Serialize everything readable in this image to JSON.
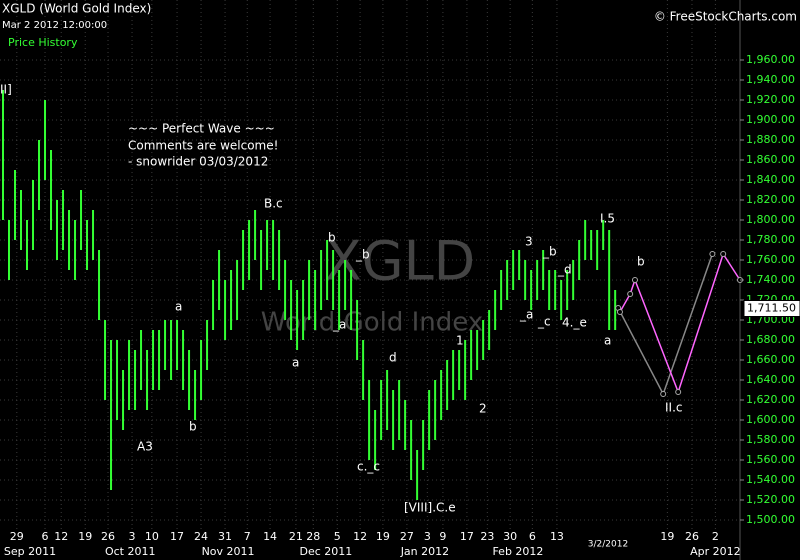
{
  "header": {
    "symbol": "XGLD (World Gold Index)",
    "date": "Mar 2 2012 12:00:00",
    "panel": "Price History",
    "source": "© FreeStockCharts.com"
  },
  "watermark": {
    "symbol": "XGLD",
    "name": "World Gold Index"
  },
  "annotations": [
    "II]",
    "~~~ Perfect Wave ~~~",
    "Comments are welcome!",
    "- snowrider  03/03/2012",
    "B.c",
    "a",
    "A3",
    "b",
    "a",
    "b",
    "_b",
    "_a",
    "d",
    "c._c",
    "[VIII].C.e",
    "1",
    "2",
    "3",
    "_b",
    "_d",
    "_a",
    "_c",
    "4._e",
    "I.5",
    "a",
    "b",
    "II.c"
  ],
  "chart_data": {
    "type": "range-bar",
    "color": "#33ff33",
    "grid": true,
    "xlim": [
      -0.5,
      122.8
    ],
    "ylim": [
      1480,
      2020
    ],
    "low": [
      1800,
      1740,
      1780,
      1770,
      1750,
      1770,
      1810,
      1840,
      1790,
      1760,
      1770,
      1750,
      1740,
      1770,
      1750,
      1760,
      1700,
      1620,
      1530,
      1600,
      1590,
      1610,
      1610,
      1630,
      1610,
      1630,
      1630,
      1650,
      1640,
      1650,
      1630,
      1610,
      1600,
      1620,
      1650,
      1690,
      1710,
      1680,
      1690,
      1700,
      1730,
      1740,
      1760,
      1730,
      1750,
      1740,
      1730,
      1700,
      1680,
      1670,
      1680,
      1700,
      1690,
      1710,
      1720,
      1710,
      1690,
      1710,
      1690,
      1660,
      1620,
      1560,
      1550,
      1580,
      1590,
      1570,
      1580,
      1570,
      1540,
      1520,
      1550,
      1570,
      1580,
      1600,
      1610,
      1620,
      1630,
      1620,
      1640,
      1650,
      1660,
      1670,
      1690,
      1710,
      1720,
      1730,
      1740,
      1720,
      1710,
      1720,
      1730,
      1710,
      1710,
      1700,
      1710,
      1720,
      1740,
      1760,
      1760,
      1750,
      1770,
      1690,
      1690
    ],
    "high": [
      1930,
      1800,
      1850,
      1830,
      1800,
      1840,
      1880,
      1920,
      1870,
      1820,
      1830,
      1810,
      1800,
      1830,
      1800,
      1810,
      1770,
      1700,
      1680,
      1680,
      1650,
      1680,
      1670,
      1690,
      1670,
      1690,
      1690,
      1700,
      1700,
      1700,
      1690,
      1670,
      1650,
      1680,
      1700,
      1740,
      1770,
      1740,
      1750,
      1760,
      1790,
      1800,
      1810,
      1790,
      1800,
      1800,
      1790,
      1760,
      1740,
      1730,
      1740,
      1760,
      1750,
      1770,
      1780,
      1770,
      1750,
      1760,
      1750,
      1720,
      1680,
      1640,
      1610,
      1640,
      1650,
      1630,
      1640,
      1620,
      1600,
      1570,
      1600,
      1630,
      1640,
      1650,
      1660,
      1670,
      1670,
      1680,
      1690,
      1690,
      1700,
      1710,
      1730,
      1750,
      1760,
      1770,
      1770,
      1760,
      1750,
      1760,
      1770,
      1750,
      1750,
      1740,
      1750,
      1760,
      1780,
      1800,
      1790,
      1790,
      1800,
      1790,
      1730
    ],
    "projections": [
      {
        "color": "#888888",
        "x": [
          102.5,
          110,
          118.2
        ],
        "values": [
          1712,
          1626,
          1766
        ]
      },
      {
        "color": "#ff66ff",
        "x": [
          102.8,
          104.5,
          105.3,
          112.5,
          120,
          122.8
        ],
        "values": [
          1708,
          1726,
          1740,
          1628,
          1766,
          1740
        ]
      }
    ],
    "last_price": {
      "value": 1711.5,
      "label": "1,711.50"
    },
    "yticks": [
      {
        "value": 1500,
        "label": "1,500.00"
      },
      {
        "value": 1520,
        "label": "1,520.00"
      },
      {
        "value": 1540,
        "label": "1,540.00"
      },
      {
        "value": 1560,
        "label": "1,560.00"
      },
      {
        "value": 1580,
        "label": "1,580.00"
      },
      {
        "value": 1600,
        "label": "1,600.00"
      },
      {
        "value": 1620,
        "label": "1,620.00"
      },
      {
        "value": 1640,
        "label": "1,640.00"
      },
      {
        "value": 1660,
        "label": "1,660.00"
      },
      {
        "value": 1680,
        "label": "1,680.00"
      },
      {
        "value": 1700,
        "label": "1,700.00"
      },
      {
        "value": 1720,
        "label": "1,720.00"
      },
      {
        "value": 1740,
        "label": "1,740.00"
      },
      {
        "value": 1760,
        "label": "1,760.00"
      },
      {
        "value": 1780,
        "label": "1,780.00"
      },
      {
        "value": 1800,
        "label": "1,800.00"
      },
      {
        "value": 1820,
        "label": "1,820.00"
      },
      {
        "value": 1840,
        "label": "1,840.00"
      },
      {
        "value": 1860,
        "label": "1,860.00"
      },
      {
        "value": 1880,
        "label": "1,880.00"
      },
      {
        "value": 1900,
        "label": "1,900.00"
      },
      {
        "value": 1920,
        "label": "1,920.00"
      },
      {
        "value": 1940,
        "label": "1,940.00"
      },
      {
        "value": 1960,
        "label": "1,960.00"
      }
    ],
    "xticks": [
      {
        "value": 2.3,
        "label": "29"
      },
      {
        "value": 7,
        "label": "6"
      },
      {
        "value": 9.7,
        "label": "12"
      },
      {
        "value": 13.7,
        "label": "19"
      },
      {
        "value": 17.5,
        "label": "26"
      },
      {
        "value": 21.5,
        "label": "3"
      },
      {
        "value": 24.8,
        "label": "10"
      },
      {
        "value": 29,
        "label": "17"
      },
      {
        "value": 33,
        "label": "24"
      },
      {
        "value": 37,
        "label": "31"
      },
      {
        "value": 40.7,
        "label": "7"
      },
      {
        "value": 44.5,
        "label": "14"
      },
      {
        "value": 48.8,
        "label": "21"
      },
      {
        "value": 51.7,
        "label": "28"
      },
      {
        "value": 55.7,
        "label": "5"
      },
      {
        "value": 59.5,
        "label": "12"
      },
      {
        "value": 63.3,
        "label": "19"
      },
      {
        "value": 67.3,
        "label": "27"
      },
      {
        "value": 70.7,
        "label": "3"
      },
      {
        "value": 73.3,
        "label": "9"
      },
      {
        "value": 77.3,
        "label": "17"
      },
      {
        "value": 80.7,
        "label": "23"
      },
      {
        "value": 84.5,
        "label": "30"
      },
      {
        "value": 88.2,
        "label": "6"
      },
      {
        "value": 92.3,
        "label": "13"
      },
      {
        "value": 110.7,
        "label": "19"
      },
      {
        "value": 114.8,
        "label": "26"
      },
      {
        "value": 118.7,
        "label": "2"
      }
    ],
    "month_ticks": [
      {
        "value": 4.5,
        "label": "Sep 2011"
      },
      {
        "value": 21.2,
        "label": "Oct 2011"
      },
      {
        "value": 37.5,
        "label": "Nov 2011"
      },
      {
        "value": 53.8,
        "label": "Dec 2011"
      },
      {
        "value": 70.3,
        "label": "Jan 2012"
      },
      {
        "value": 85.8,
        "label": "Feb 2012"
      },
      {
        "value": 100.8,
        "label": "3/2/2012"
      },
      {
        "value": 118.7,
        "label": "Apr 2012"
      }
    ]
  }
}
